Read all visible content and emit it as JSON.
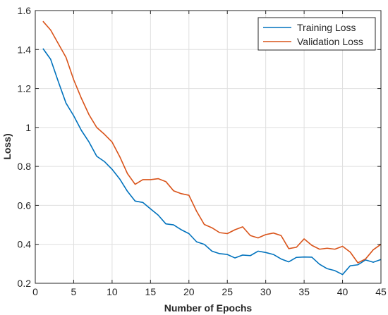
{
  "chart_data": {
    "type": "line",
    "xlabel": "Number of Epochs",
    "ylabel": "Loss)",
    "xlim": [
      0,
      45
    ],
    "ylim": [
      0.2,
      1.6
    ],
    "xticks": [
      0,
      5,
      10,
      15,
      20,
      25,
      30,
      35,
      40,
      45
    ],
    "yticks": [
      0.2,
      0.4,
      0.6,
      0.8,
      1,
      1.2,
      1.4,
      1.6
    ],
    "xtick_labels": [
      "0",
      "5",
      "10",
      "15",
      "20",
      "25",
      "30",
      "35",
      "40",
      "45"
    ],
    "ytick_labels": [
      "0.2",
      "0.4",
      "0.6",
      "0.8",
      "1",
      "1.2",
      "1.4",
      "1.6"
    ],
    "grid": true,
    "legend_position": "top-right",
    "x": [
      1,
      2,
      3,
      4,
      5,
      6,
      7,
      8,
      9,
      10,
      11,
      12,
      13,
      14,
      15,
      16,
      17,
      18,
      19,
      20,
      21,
      22,
      23,
      24,
      25,
      26,
      27,
      28,
      29,
      30,
      31,
      32,
      33,
      34,
      35,
      36,
      37,
      38,
      39,
      40,
      41,
      42,
      43,
      44,
      45
    ],
    "series": [
      {
        "name": "Training Loss",
        "color": "#0072BD",
        "values": [
          1.405,
          1.35,
          1.235,
          1.125,
          1.06,
          0.985,
          0.925,
          0.852,
          0.825,
          0.785,
          0.735,
          0.672,
          0.622,
          0.615,
          0.582,
          0.55,
          0.505,
          0.5,
          0.475,
          0.455,
          0.413,
          0.4,
          0.365,
          0.352,
          0.348,
          0.33,
          0.345,
          0.342,
          0.365,
          0.358,
          0.348,
          0.325,
          0.31,
          0.333,
          0.335,
          0.334,
          0.298,
          0.275,
          0.265,
          0.245,
          0.29,
          0.295,
          0.32,
          0.308,
          0.322
        ]
      },
      {
        "name": "Validation Loss",
        "color": "#D95319",
        "values": [
          1.545,
          1.5,
          1.43,
          1.36,
          1.245,
          1.15,
          1.065,
          1.0,
          0.965,
          0.925,
          0.85,
          0.763,
          0.708,
          0.732,
          0.732,
          0.737,
          0.722,
          0.675,
          0.66,
          0.652,
          0.57,
          0.502,
          0.485,
          0.46,
          0.455,
          0.475,
          0.49,
          0.445,
          0.433,
          0.45,
          0.458,
          0.445,
          0.378,
          0.385,
          0.428,
          0.395,
          0.375,
          0.38,
          0.375,
          0.39,
          0.36,
          0.305,
          0.325,
          0.372,
          0.4
        ]
      }
    ]
  }
}
